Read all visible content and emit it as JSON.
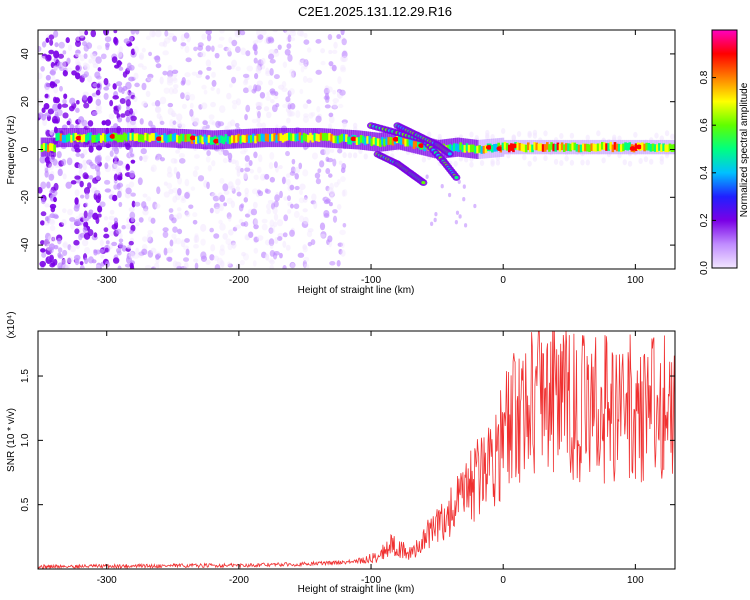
{
  "title": "C2E1.2025.131.12.29.R16",
  "colors": {
    "snr_line": "#f03030",
    "frame": "#000000"
  },
  "chart_data": [
    {
      "type": "heatmap",
      "xlabel": "Height of straight line (km)",
      "ylabel": "Frequency (Hz)",
      "xlim": [
        -352,
        130
      ],
      "ylim": [
        -50,
        50
      ],
      "xticks": [
        -300,
        -200,
        -100,
        0,
        100
      ],
      "yticks": [
        -40,
        -20,
        0,
        20,
        40
      ],
      "colorbar": {
        "label": "Normalized spectral amplitude",
        "range": [
          0.0,
          1.0
        ],
        "ticks": [
          "0.0",
          "0.2",
          "0.4",
          "0.6",
          "0.8"
        ],
        "tick_values": [
          0.0,
          0.2,
          0.4,
          0.6,
          0.8
        ],
        "colors": [
          "#f2e6ff",
          "#c08cff",
          "#7a00e6",
          "#2020ff",
          "#00c0ff",
          "#00ff80",
          "#60ff00",
          "#ffff00",
          "#ff8000",
          "#ff0000",
          "#ff00c0"
        ]
      },
      "ridge": [
        {
          "x": -340,
          "y": 5
        },
        {
          "x": -300,
          "y": 5
        },
        {
          "x": -260,
          "y": 5
        },
        {
          "x": -220,
          "y": 4
        },
        {
          "x": -180,
          "y": 5
        },
        {
          "x": -140,
          "y": 5
        },
        {
          "x": -110,
          "y": 4
        },
        {
          "x": -95,
          "y": 3
        },
        {
          "x": -80,
          "y": 4
        },
        {
          "x": -65,
          "y": 2
        },
        {
          "x": -50,
          "y": 0
        },
        {
          "x": -35,
          "y": 1
        },
        {
          "x": -20,
          "y": 0
        },
        {
          "x": 0,
          "y": 1
        },
        {
          "x": 40,
          "y": 1
        },
        {
          "x": 80,
          "y": 1
        },
        {
          "x": 130,
          "y": 1
        }
      ]
    },
    {
      "type": "line",
      "xlabel": "Height of straight line (km)",
      "ylabel": "SNR (10 * v/v)",
      "scale_label": "(x10⁴)",
      "xlim": [
        -352,
        130
      ],
      "ylim": [
        0,
        1.85
      ],
      "xticks": [
        -300,
        -200,
        -100,
        0,
        100
      ],
      "yticks": [
        0.5,
        1.0,
        1.5
      ],
      "series": [
        {
          "envelope": [
            {
              "x": -352,
              "y": 0.02
            },
            {
              "x": -200,
              "y": 0.03
            },
            {
              "x": -150,
              "y": 0.04
            },
            {
              "x": -110,
              "y": 0.06
            },
            {
              "x": -95,
              "y": 0.1
            },
            {
              "x": -85,
              "y": 0.2
            },
            {
              "x": -70,
              "y": 0.12
            },
            {
              "x": -55,
              "y": 0.3
            },
            {
              "x": -40,
              "y": 0.45
            },
            {
              "x": -25,
              "y": 0.65
            },
            {
              "x": -10,
              "y": 0.9
            },
            {
              "x": 5,
              "y": 1.15
            },
            {
              "x": 20,
              "y": 1.4
            },
            {
              "x": 30,
              "y": 1.5
            },
            {
              "x": 45,
              "y": 1.35
            },
            {
              "x": 60,
              "y": 1.3
            },
            {
              "x": 80,
              "y": 1.32
            },
            {
              "x": 100,
              "y": 1.3
            },
            {
              "x": 120,
              "y": 1.33
            },
            {
              "x": 130,
              "y": 1.32
            }
          ]
        }
      ]
    }
  ]
}
